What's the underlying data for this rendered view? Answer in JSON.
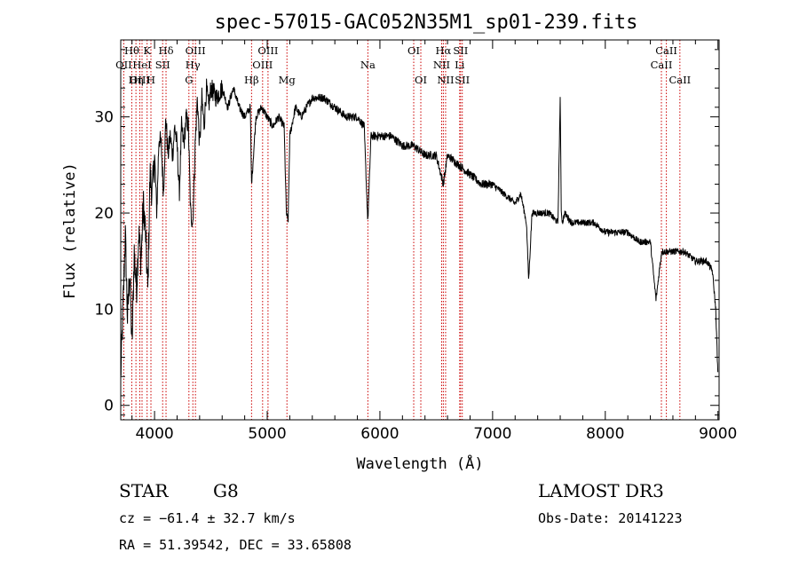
{
  "chart_data": {
    "type": "line",
    "title": "spec-57015-GAC052N35M1_sp01-239.fits",
    "xlabel": "Wavelength (Å)",
    "ylabel": "Flux (relative)",
    "xlim": [
      3700,
      9010
    ],
    "ylim": [
      -1.5,
      38
    ],
    "xticks": [
      4000,
      5000,
      6000,
      7000,
      8000,
      9000
    ],
    "yticks": [
      0,
      10,
      20,
      30
    ],
    "series": [
      {
        "name": "flux",
        "x": [
          3700,
          3720,
          3740,
          3760,
          3780,
          3800,
          3820,
          3840,
          3860,
          3880,
          3900,
          3920,
          3940,
          3960,
          3980,
          4000,
          4020,
          4040,
          4060,
          4080,
          4100,
          4120,
          4140,
          4160,
          4180,
          4200,
          4220,
          4240,
          4260,
          4280,
          4300,
          4320,
          4340,
          4360,
          4380,
          4400,
          4420,
          4440,
          4460,
          4480,
          4500,
          4550,
          4600,
          4650,
          4700,
          4750,
          4800,
          4850,
          4861,
          4900,
          4950,
          5000,
          5050,
          5100,
          5150,
          5170,
          5185,
          5200,
          5250,
          5300,
          5400,
          5500,
          5600,
          5700,
          5800,
          5860,
          5893,
          5920,
          6000,
          6100,
          6200,
          6300,
          6400,
          6500,
          6563,
          6600,
          6700,
          6800,
          6900,
          7000,
          7100,
          7200,
          7250,
          7300,
          7320,
          7350,
          7400,
          7500,
          7580,
          7600,
          7610,
          7620,
          7640,
          7700,
          7800,
          7900,
          8000,
          8100,
          8200,
          8300,
          8400,
          8450,
          8500,
          8542,
          8560,
          8600,
          8662,
          8700,
          8800,
          8900,
          8950,
          8980,
          9000
        ],
        "values": [
          3,
          10,
          18,
          9,
          14,
          6,
          16,
          12,
          18,
          15,
          21,
          18,
          12,
          24,
          22,
          26,
          20,
          28,
          27,
          22,
          30,
          26,
          28,
          26,
          29,
          27,
          22,
          29,
          27,
          30,
          29,
          20,
          19,
          27,
          32,
          27,
          32,
          29,
          33,
          31,
          33,
          32,
          33,
          31,
          33,
          31,
          30,
          31,
          23,
          30,
          31,
          30,
          29,
          30,
          29,
          20,
          19,
          28,
          31,
          30,
          32,
          32,
          31,
          30,
          30,
          29,
          19,
          28,
          28,
          28,
          27,
          27,
          26,
          26,
          23,
          26,
          25,
          24,
          23,
          23,
          22,
          21,
          22,
          19,
          13,
          20,
          20,
          20,
          19,
          32,
          20,
          19,
          20,
          19,
          19,
          19,
          18,
          18,
          18,
          17,
          17,
          11,
          16,
          16,
          16,
          16,
          16,
          16,
          15,
          15,
          14,
          10,
          3
        ]
      }
    ],
    "annotations": [
      {
        "label": "Hθ",
        "x": 3798,
        "row": 1
      },
      {
        "label": "OII",
        "x": 3727,
        "row": 2
      },
      {
        "label": "OIII",
        "x": 3869,
        "row": 3
      },
      {
        "label": "HeI",
        "x": 3889,
        "row": 2
      },
      {
        "label": "Hη",
        "x": 3835,
        "row": 3
      },
      {
        "label": "K",
        "x": 3934,
        "row": 1
      },
      {
        "label": "H",
        "x": 3968,
        "row": 3
      },
      {
        "label": "SII",
        "x": 4072,
        "row": 2
      },
      {
        "label": "Hδ",
        "x": 4102,
        "row": 1
      },
      {
        "label": "OIII",
        "x": 4363,
        "row": 1
      },
      {
        "label": "Hγ",
        "x": 4340,
        "row": 2
      },
      {
        "label": "G",
        "x": 4305,
        "row": 3
      },
      {
        "label": "Hβ",
        "x": 4861,
        "row": 3
      },
      {
        "label": "OIII",
        "x": 5007,
        "row": 1
      },
      {
        "label": "OIII",
        "x": 4959,
        "row": 2
      },
      {
        "label": "Mg",
        "x": 5175,
        "row": 3
      },
      {
        "label": "Na",
        "x": 5893,
        "row": 2
      },
      {
        "label": "OI",
        "x": 6300,
        "row": 1
      },
      {
        "label": "OI",
        "x": 6363,
        "row": 3
      },
      {
        "label": "Hα",
        "x": 6563,
        "row": 1
      },
      {
        "label": "NII",
        "x": 6548,
        "row": 2
      },
      {
        "label": "NII",
        "x": 6583,
        "row": 3
      },
      {
        "label": "SII",
        "x": 6716,
        "row": 1
      },
      {
        "label": "Li",
        "x": 6708,
        "row": 2
      },
      {
        "label": "SII",
        "x": 6731,
        "row": 3
      },
      {
        "label": "CaII",
        "x": 8542,
        "row": 1
      },
      {
        "label": "CaII",
        "x": 8498,
        "row": 2
      },
      {
        "label": "CaII",
        "x": 8662,
        "row": 3
      }
    ]
  },
  "info": {
    "class": "STAR",
    "subclass": "G8",
    "survey": "LAMOST DR3",
    "cz": "cz = −61.4 ± 32.7 km/s",
    "obs_date": "Obs-Date: 20141223",
    "coords": "RA =  51.39542, DEC =  33.65808"
  },
  "colors": {
    "line": "#000000",
    "marker": "#cc0000"
  }
}
